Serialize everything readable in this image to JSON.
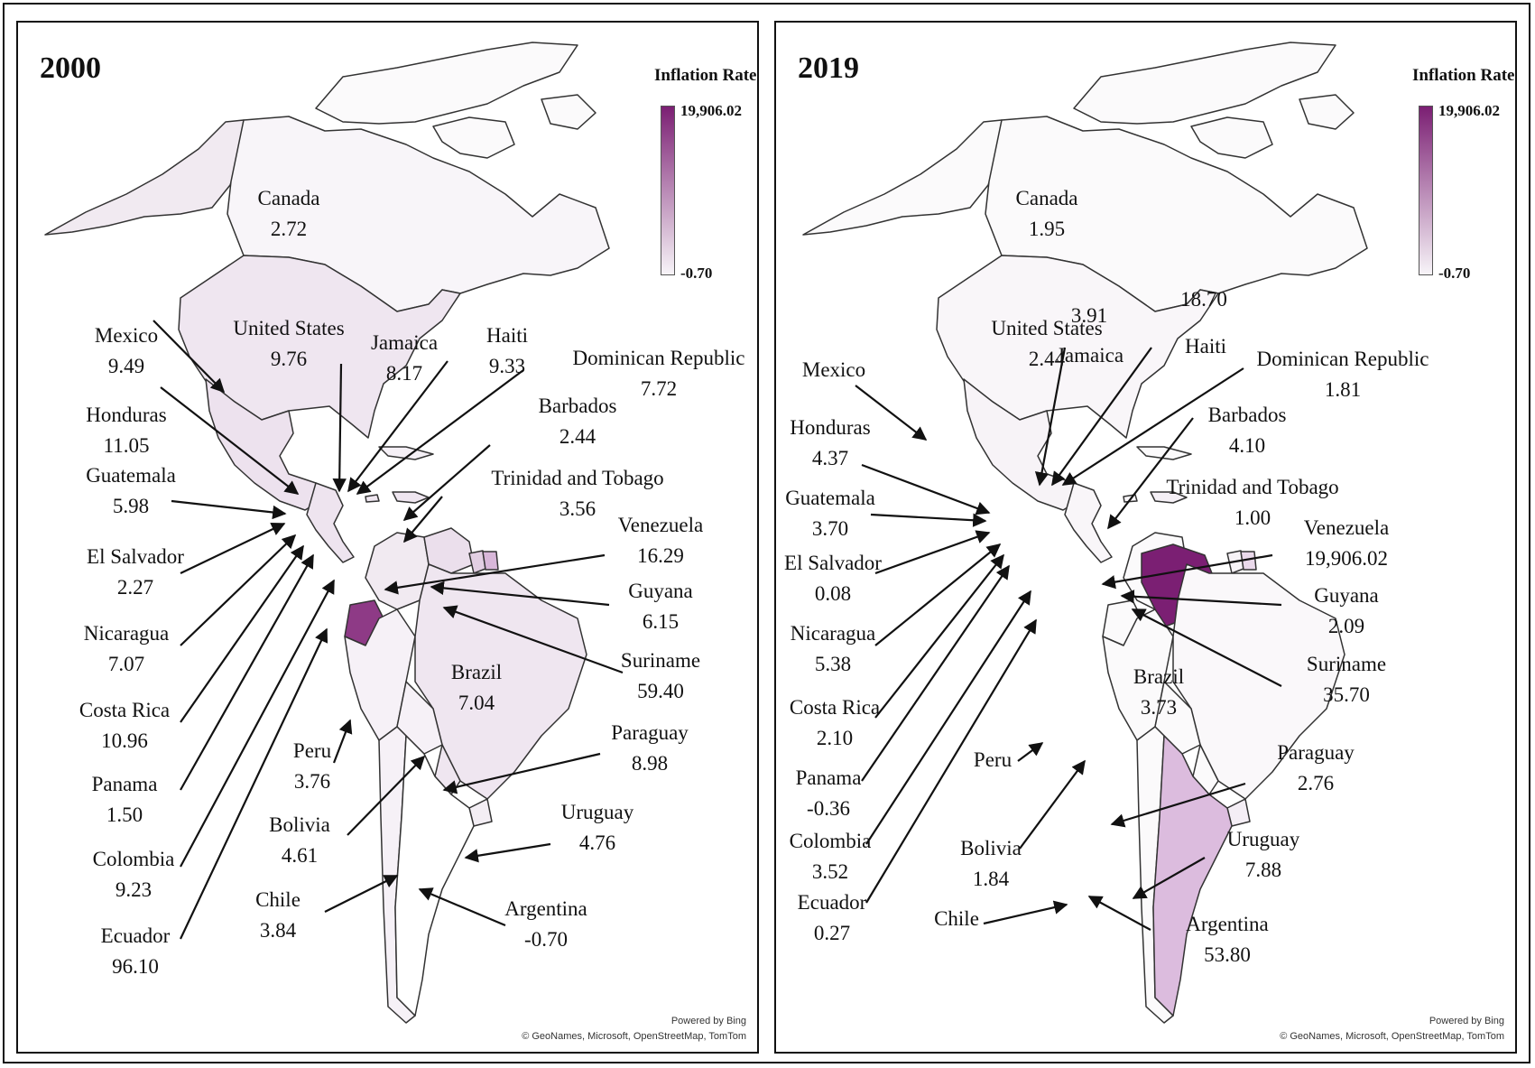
{
  "legend_colors": {
    "min": "#f7f4f8",
    "max": "#7b1f73"
  },
  "panels": [
    {
      "year": "2000",
      "legend": {
        "title": "Inflation Rate",
        "max": "19,906.02",
        "min": "-0.70"
      },
      "credit": {
        "line1": "Powered by Bing",
        "line2": "© GeoNames, Microsoft, OpenStreetMap, TomTom"
      },
      "countries": {
        "canada": {
          "name": "Canada",
          "value": "2.72"
        },
        "usa": {
          "name": "United States",
          "value": "9.76"
        },
        "mexico": {
          "name": "Mexico",
          "value": "9.49"
        },
        "jamaica": {
          "name": "Jamaica",
          "value": "8.17"
        },
        "haiti": {
          "name": "Haiti",
          "value": "9.33"
        },
        "dominican": {
          "name": "Dominican Republic",
          "value": "7.72"
        },
        "honduras": {
          "name": "Honduras",
          "value": "11.05"
        },
        "barbados": {
          "name": "Barbados",
          "value": "2.44"
        },
        "trinidad": {
          "name": "Trinidad and Tobago",
          "value": "3.56"
        },
        "guatemala": {
          "name": "Guatemala",
          "value": "5.98"
        },
        "venezuela": {
          "name": "Venezuela",
          "value": "16.29"
        },
        "el_salvador": {
          "name": "El Salvador",
          "value": "2.27"
        },
        "guyana": {
          "name": "Guyana",
          "value": "6.15"
        },
        "nicaragua": {
          "name": "Nicaragua",
          "value": "7.07"
        },
        "suriname": {
          "name": "Suriname",
          "value": "59.40"
        },
        "brazil": {
          "name": "Brazil",
          "value": "7.04"
        },
        "costa_rica": {
          "name": "Costa Rica",
          "value": "10.96"
        },
        "peru": {
          "name": "Peru",
          "value": "3.76"
        },
        "paraguay": {
          "name": "Paraguay",
          "value": "8.98"
        },
        "panama": {
          "name": "Panama",
          "value": "1.50"
        },
        "bolivia": {
          "name": "Bolivia",
          "value": "4.61"
        },
        "uruguay": {
          "name": "Uruguay",
          "value": "4.76"
        },
        "colombia": {
          "name": "Colombia",
          "value": "9.23"
        },
        "chile": {
          "name": "Chile",
          "value": "3.84"
        },
        "argentina": {
          "name": "Argentina",
          "value": "-0.70"
        },
        "ecuador": {
          "name": "Ecuador",
          "value": "96.10"
        }
      }
    },
    {
      "year": "2019",
      "legend": {
        "title": "Inflation Rate",
        "max": "19,906.02",
        "min": "-0.70"
      },
      "credit": {
        "line1": "Powered by Bing",
        "line2": "© GeoNames, Microsoft, OpenStreetMap, TomTom"
      },
      "countries": {
        "canada": {
          "name": "Canada",
          "value": "1.95"
        },
        "usa": {
          "name": "United States",
          "value": "2.44"
        },
        "jamaica_value": {
          "value": "3.91"
        },
        "haiti_value": {
          "value": "18.70"
        },
        "mexico": {
          "name": "Mexico"
        },
        "jamaica": {
          "name": "Jamaica"
        },
        "haiti": {
          "name": "Haiti"
        },
        "dominican": {
          "name": "Dominican Republic",
          "value": "1.81"
        },
        "honduras": {
          "name": "Honduras",
          "value": "4.37"
        },
        "barbados": {
          "name": "Barbados",
          "value": "4.10"
        },
        "guatemala": {
          "name": "Guatemala",
          "value": "3.70"
        },
        "trinidad": {
          "name": "Trinidad and Tobago",
          "value": "1.00"
        },
        "venezuela": {
          "name": "Venezuela",
          "value": "19,906.02"
        },
        "el_salvador": {
          "name": "El Salvador",
          "value": "0.08"
        },
        "guyana": {
          "name": "Guyana",
          "value": "2.09"
        },
        "nicaragua": {
          "name": "Nicaragua",
          "value": "5.38"
        },
        "suriname": {
          "name": "Suriname",
          "value": "35.70"
        },
        "brazil": {
          "name": "Brazil",
          "value": "3.73"
        },
        "costa_rica": {
          "name": "Costa Rica",
          "value": "2.10"
        },
        "peru": {
          "name": "Peru"
        },
        "paraguay": {
          "name": "Paraguay",
          "value": "2.76"
        },
        "panama": {
          "name": "Panama",
          "value": "-0.36"
        },
        "bolivia": {
          "name": "Bolivia",
          "value": "1.84"
        },
        "uruguay": {
          "name": "Uruguay",
          "value": "7.88"
        },
        "colombia": {
          "name": "Colombia",
          "value": "3.52"
        },
        "chile": {
          "name": "Chile"
        },
        "argentina": {
          "name": "Argentina",
          "value": "53.80"
        },
        "ecuador": {
          "name": "Ecuador",
          "value": "0.27"
        }
      }
    }
  ]
}
